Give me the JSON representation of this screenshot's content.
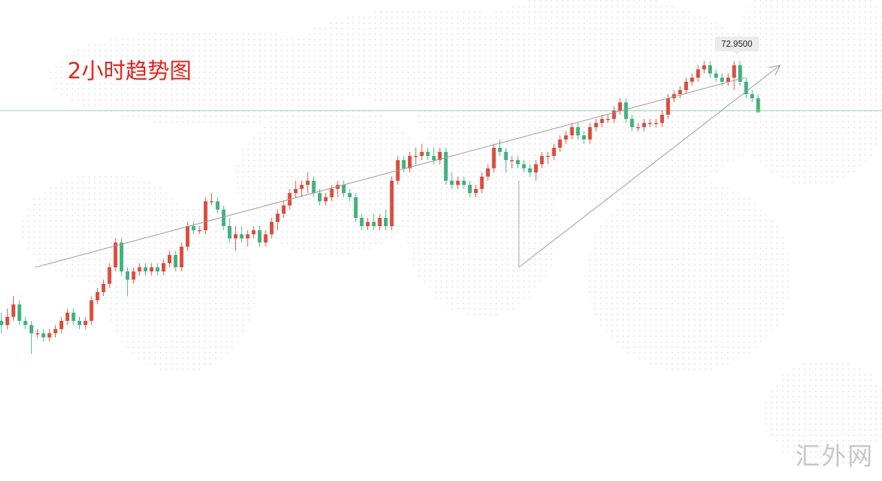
{
  "title": "2小时趋势图",
  "watermark": "汇外网",
  "current_price_label": "72.9500",
  "colors": {
    "up": "#dd4b3c",
    "down": "#3fb27f",
    "trendline": "#9e9e9e",
    "price_line": "#8fd3b4",
    "title": "#e8231b",
    "current_dot": "#43d35a",
    "map_dots": "#f1f1f1"
  },
  "chart_data": {
    "type": "candlestick",
    "title": "2小时趋势图",
    "interval": "2h",
    "grid": false,
    "axes_visible": false,
    "price_line_value": 72.95,
    "candles": [
      [
        72.44,
        72.46,
        72.41,
        72.43
      ],
      [
        72.43,
        72.47,
        72.42,
        72.45
      ],
      [
        72.45,
        72.5,
        72.44,
        72.48
      ],
      [
        72.48,
        72.49,
        72.43,
        72.44
      ],
      [
        72.44,
        72.45,
        72.42,
        72.43
      ],
      [
        72.43,
        72.44,
        72.36,
        72.41
      ],
      [
        72.41,
        72.42,
        72.4,
        72.41
      ],
      [
        72.41,
        72.42,
        72.39,
        72.4
      ],
      [
        72.4,
        72.42,
        72.39,
        72.41
      ],
      [
        72.41,
        72.43,
        72.4,
        72.42
      ],
      [
        72.42,
        72.45,
        72.41,
        72.44
      ],
      [
        72.44,
        72.47,
        72.43,
        72.46
      ],
      [
        72.46,
        72.47,
        72.43,
        72.44
      ],
      [
        72.44,
        72.45,
        72.42,
        72.43
      ],
      [
        72.43,
        72.45,
        72.42,
        72.44
      ],
      [
        72.44,
        72.5,
        72.43,
        72.49
      ],
      [
        72.49,
        72.52,
        72.48,
        72.51
      ],
      [
        72.51,
        72.54,
        72.5,
        72.53
      ],
      [
        72.53,
        72.58,
        72.52,
        72.57
      ],
      [
        72.57,
        72.64,
        72.56,
        72.63
      ],
      [
        72.63,
        72.64,
        72.55,
        72.56
      ],
      [
        72.56,
        72.57,
        72.5,
        72.54
      ],
      [
        72.54,
        72.57,
        72.53,
        72.56
      ],
      [
        72.56,
        72.58,
        72.55,
        72.57
      ],
      [
        72.57,
        72.58,
        72.55,
        72.56
      ],
      [
        72.56,
        72.58,
        72.55,
        72.57
      ],
      [
        72.57,
        72.58,
        72.55,
        72.56
      ],
      [
        72.56,
        72.59,
        72.55,
        72.58
      ],
      [
        72.58,
        72.61,
        72.57,
        72.6
      ],
      [
        72.6,
        72.61,
        72.56,
        72.57
      ],
      [
        72.57,
        72.63,
        72.56,
        72.62
      ],
      [
        72.62,
        72.68,
        72.61,
        72.67
      ],
      [
        72.67,
        72.68,
        72.65,
        72.66
      ],
      [
        72.66,
        72.67,
        72.65,
        72.66
      ],
      [
        72.66,
        72.74,
        72.65,
        72.73
      ],
      [
        72.73,
        72.75,
        72.72,
        72.73
      ],
      [
        72.73,
        72.74,
        72.7,
        72.71
      ],
      [
        72.71,
        72.72,
        72.66,
        72.67
      ],
      [
        72.67,
        72.69,
        72.63,
        72.64
      ],
      [
        72.64,
        72.67,
        72.61,
        72.65
      ],
      [
        72.65,
        72.67,
        72.63,
        72.64
      ],
      [
        72.64,
        72.66,
        72.62,
        72.65
      ],
      [
        72.65,
        72.67,
        72.64,
        72.66
      ],
      [
        72.66,
        72.67,
        72.62,
        72.63
      ],
      [
        72.63,
        72.66,
        72.62,
        72.65
      ],
      [
        72.65,
        72.69,
        72.64,
        72.68
      ],
      [
        72.68,
        72.71,
        72.66,
        72.7
      ],
      [
        72.7,
        72.73,
        72.69,
        72.72
      ],
      [
        72.72,
        72.76,
        72.71,
        72.75
      ],
      [
        72.75,
        72.78,
        72.74,
        72.76
      ],
      [
        72.76,
        72.78,
        72.74,
        72.77
      ],
      [
        72.77,
        72.8,
        72.75,
        72.78
      ],
      [
        72.78,
        72.79,
        72.74,
        72.75
      ],
      [
        72.75,
        72.76,
        72.72,
        72.73
      ],
      [
        72.73,
        72.75,
        72.72,
        72.74
      ],
      [
        72.74,
        72.77,
        72.73,
        72.76
      ],
      [
        72.76,
        72.78,
        72.74,
        72.77
      ],
      [
        72.77,
        72.78,
        72.74,
        72.75
      ],
      [
        72.75,
        72.76,
        72.73,
        72.74
      ],
      [
        72.74,
        72.75,
        72.68,
        72.69
      ],
      [
        72.69,
        72.7,
        72.66,
        72.67
      ],
      [
        72.67,
        72.69,
        72.66,
        72.68
      ],
      [
        72.68,
        72.7,
        72.66,
        72.67
      ],
      [
        72.67,
        72.7,
        72.66,
        72.69
      ],
      [
        72.69,
        72.71,
        72.66,
        72.67
      ],
      [
        72.67,
        72.79,
        72.66,
        72.78
      ],
      [
        72.78,
        72.84,
        72.77,
        72.83
      ],
      [
        72.83,
        72.84,
        72.8,
        72.81
      ],
      [
        72.81,
        72.85,
        72.8,
        72.84
      ],
      [
        72.84,
        72.86,
        72.82,
        72.84
      ],
      [
        72.84,
        72.87,
        72.83,
        72.85
      ],
      [
        72.85,
        72.86,
        72.83,
        72.84
      ],
      [
        72.84,
        72.86,
        72.82,
        72.83
      ],
      [
        72.83,
        72.86,
        72.82,
        72.85
      ],
      [
        72.85,
        72.86,
        72.77,
        72.78
      ],
      [
        72.78,
        72.8,
        72.76,
        72.77
      ],
      [
        72.77,
        72.79,
        72.76,
        72.78
      ],
      [
        72.78,
        72.79,
        72.76,
        72.77
      ],
      [
        72.77,
        72.78,
        72.74,
        72.75
      ],
      [
        72.75,
        72.77,
        72.74,
        72.76
      ],
      [
        72.76,
        72.8,
        72.75,
        72.79
      ],
      [
        72.79,
        72.82,
        72.78,
        72.81
      ],
      [
        72.81,
        72.87,
        72.8,
        72.86
      ],
      [
        72.86,
        72.88,
        72.84,
        72.85
      ],
      [
        72.85,
        72.86,
        72.8,
        72.83
      ],
      [
        72.83,
        72.84,
        72.81,
        72.83
      ],
      [
        72.83,
        72.84,
        72.81,
        72.82
      ],
      [
        72.82,
        72.83,
        72.8,
        72.81
      ],
      [
        72.81,
        72.82,
        72.79,
        72.8
      ],
      [
        72.8,
        72.83,
        72.78,
        72.82
      ],
      [
        72.82,
        72.85,
        72.81,
        72.84
      ],
      [
        72.84,
        72.85,
        72.82,
        72.84
      ],
      [
        72.84,
        72.87,
        72.83,
        72.86
      ],
      [
        72.86,
        72.89,
        72.85,
        72.88
      ],
      [
        72.88,
        72.9,
        72.87,
        72.89
      ],
      [
        72.89,
        72.92,
        72.88,
        72.91
      ],
      [
        72.91,
        72.92,
        72.88,
        72.89
      ],
      [
        72.89,
        72.9,
        72.87,
        72.88
      ],
      [
        72.88,
        72.92,
        72.87,
        72.91
      ],
      [
        72.91,
        72.93,
        72.9,
        72.92
      ],
      [
        72.92,
        72.94,
        72.91,
        72.93
      ],
      [
        72.93,
        72.94,
        72.92,
        72.93
      ],
      [
        72.93,
        72.96,
        72.92,
        72.95
      ],
      [
        72.95,
        72.98,
        72.94,
        72.97
      ],
      [
        72.97,
        72.98,
        72.92,
        72.93
      ],
      [
        72.93,
        72.94,
        72.9,
        72.91
      ],
      [
        72.91,
        72.92,
        72.9,
        72.91
      ],
      [
        72.91,
        72.93,
        72.9,
        72.92
      ],
      [
        72.92,
        72.93,
        72.91,
        72.92
      ],
      [
        72.92,
        72.93,
        72.91,
        72.92
      ],
      [
        72.92,
        72.95,
        72.91,
        72.94
      ],
      [
        72.94,
        72.99,
        72.93,
        72.98
      ],
      [
        72.98,
        73.0,
        72.97,
        72.99
      ],
      [
        72.99,
        73.01,
        72.98,
        73.0
      ],
      [
        73.0,
        73.03,
        72.99,
        73.02
      ],
      [
        73.02,
        73.04,
        73.01,
        73.03
      ],
      [
        73.03,
        73.06,
        73.02,
        73.05
      ],
      [
        73.05,
        73.07,
        73.04,
        73.06
      ],
      [
        73.06,
        73.07,
        73.03,
        73.04
      ],
      [
        73.04,
        73.05,
        73.02,
        73.03
      ],
      [
        73.03,
        73.04,
        73.01,
        73.02
      ],
      [
        73.02,
        73.04,
        73.01,
        73.03
      ],
      [
        73.03,
        73.07,
        73.0,
        73.06
      ],
      [
        73.06,
        73.07,
        73.01,
        73.02
      ],
      [
        73.02,
        73.03,
        72.98,
        72.99
      ],
      [
        72.99,
        73.0,
        72.97,
        72.98
      ],
      [
        72.98,
        72.99,
        72.95,
        72.95
      ]
    ],
    "trendlines": [
      {
        "x1": 0.04,
        "y1": 72.57,
        "x2": 0.8444,
        "y2": 73.03
      },
      {
        "x1": 0.5882,
        "y1": 72.57,
        "x2": 0.8844,
        "y2": 73.06
      }
    ]
  }
}
